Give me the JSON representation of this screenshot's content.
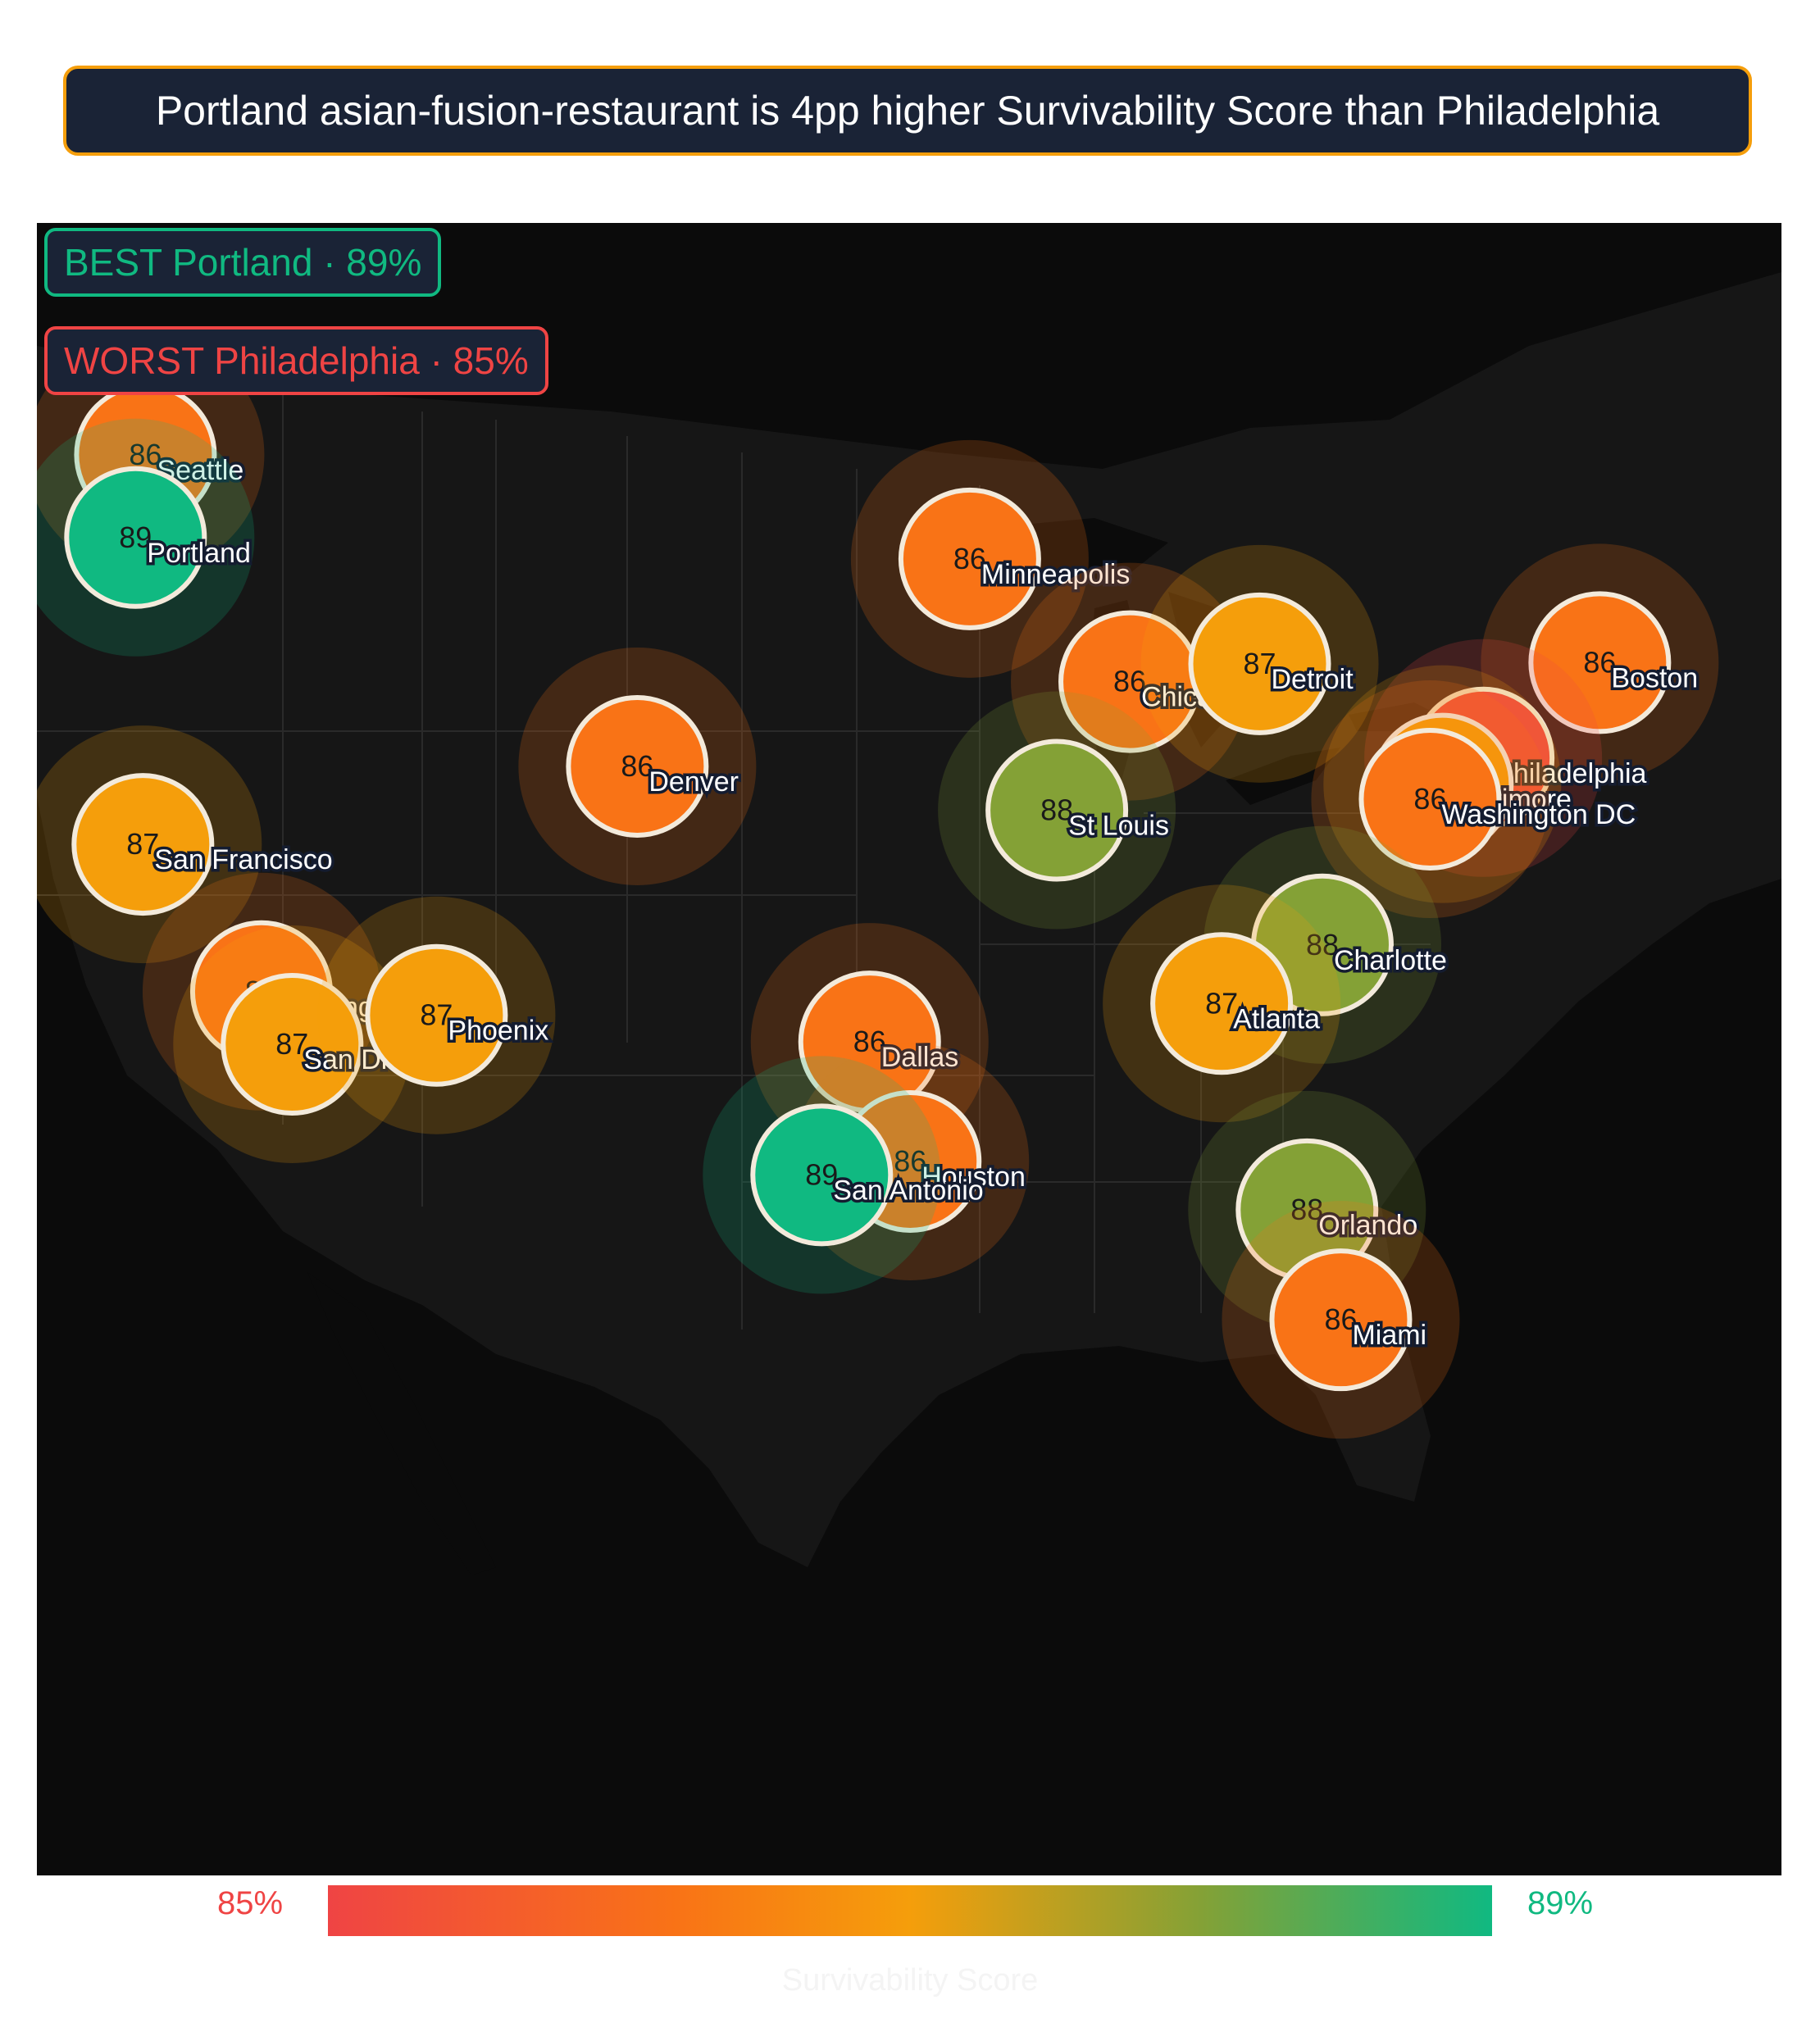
{
  "headline": "Portland asian-fusion-restaurant is 4pp higher Survivability Score than Philadelphia",
  "callouts": {
    "best": "BEST  Portland · 89%",
    "worst": "WORST Philadelphia · 85%"
  },
  "legend": {
    "min_label": "85%",
    "max_label": "89%",
    "title": "Survivability Score",
    "min_value": 85,
    "max_value": 89
  },
  "colors": {
    "low": "#ef4444",
    "mid": "#f59e0b",
    "high": "#10b981",
    "headline_border": "#f59e0b",
    "panel_bg": "#1a2336",
    "map_bg": "#0b0b0b"
  },
  "cities": [
    {
      "name": "Seattle",
      "lat": 47.61,
      "lon": -122.33,
      "score": 86,
      "score_label": "86"
    },
    {
      "name": "Portland",
      "lat": 45.52,
      "lon": -122.68,
      "score": 89,
      "score_label": "89"
    },
    {
      "name": "San Francisco",
      "lat": 37.77,
      "lon": -122.42,
      "score": 87,
      "score_label": "87"
    },
    {
      "name": "Los Angeles",
      "lat": 34.05,
      "lon": -118.24,
      "score": 86,
      "score_label": "86"
    },
    {
      "name": "San Diego",
      "lat": 32.72,
      "lon": -117.16,
      "score": 87,
      "score_label": "87"
    },
    {
      "name": "Phoenix",
      "lat": 33.45,
      "lon": -112.07,
      "score": 87,
      "score_label": "87"
    },
    {
      "name": "Denver",
      "lat": 39.74,
      "lon": -104.99,
      "score": 86,
      "score_label": "86"
    },
    {
      "name": "Minneapolis",
      "lat": 44.98,
      "lon": -93.27,
      "score": 86,
      "score_label": "86"
    },
    {
      "name": "Chicago",
      "lat": 41.88,
      "lon": -87.63,
      "score": 86,
      "score_label": "86"
    },
    {
      "name": "Detroit",
      "lat": 42.33,
      "lon": -83.05,
      "score": 87,
      "score_label": "87"
    },
    {
      "name": "St Louis",
      "lat": 38.63,
      "lon": -90.2,
      "score": 88,
      "score_label": "88"
    },
    {
      "name": "Boston",
      "lat": 42.36,
      "lon": -71.06,
      "score": 86,
      "score_label": "86"
    },
    {
      "name": "Philadelphia",
      "lat": 39.95,
      "lon": -75.17,
      "score": 85,
      "score_label": "85"
    },
    {
      "name": "Baltimore",
      "lat": 39.29,
      "lon": -76.61,
      "score": 87,
      "score_label": "87"
    },
    {
      "name": "Washington DC",
      "lat": 38.91,
      "lon": -77.04,
      "score": 86,
      "score_label": "86"
    },
    {
      "name": "Charlotte",
      "lat": 35.23,
      "lon": -80.84,
      "score": 88,
      "score_label": "88"
    },
    {
      "name": "Atlanta",
      "lat": 33.75,
      "lon": -84.39,
      "score": 87,
      "score_label": "87"
    },
    {
      "name": "Dallas",
      "lat": 32.78,
      "lon": -96.8,
      "score": 86,
      "score_label": "86"
    },
    {
      "name": "Houston",
      "lat": 29.76,
      "lon": -95.37,
      "score": 86,
      "score_label": "86"
    },
    {
      "name": "San Antonio",
      "lat": 29.42,
      "lon": -98.49,
      "score": 89,
      "score_label": "89"
    },
    {
      "name": "Orlando",
      "lat": 28.54,
      "lon": -81.38,
      "score": 88,
      "score_label": "88"
    },
    {
      "name": "Miami",
      "lat": 25.76,
      "lon": -80.19,
      "score": 86,
      "score_label": "86"
    }
  ]
}
